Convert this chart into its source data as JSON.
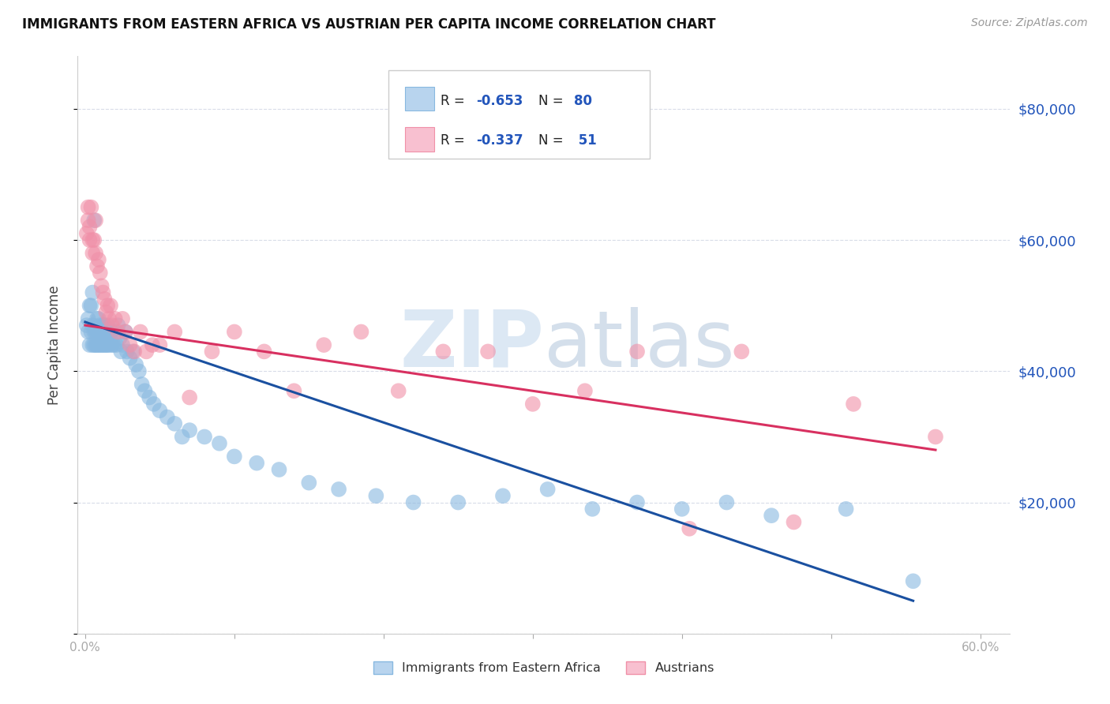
{
  "title": "IMMIGRANTS FROM EASTERN AFRICA VS AUSTRIAN PER CAPITA INCOME CORRELATION CHART",
  "source": "Source: ZipAtlas.com",
  "ylabel": "Per Capita Income",
  "scatter_color1": "#88b8e0",
  "scatter_color2": "#f090a8",
  "line_color1": "#1a50a0",
  "line_color2": "#d83060",
  "legend_color1": "#b8d4ee",
  "legend_color2": "#f8c0d0",
  "legend_edge1": "#88b8e0",
  "legend_edge2": "#f090a8",
  "watermark_zip_color": "#d8e4f0",
  "watermark_atlas_color": "#c8d8ec",
  "background_color": "#ffffff",
  "grid_color": "#d8dce8",
  "y_ticks": [
    0,
    20000,
    40000,
    60000,
    80000
  ],
  "y_tick_labels_right": [
    "",
    "$20,000",
    "$40,000",
    "$60,000",
    "$80,000"
  ],
  "blue_points_x": [
    0.001,
    0.002,
    0.002,
    0.003,
    0.003,
    0.004,
    0.004,
    0.005,
    0.005,
    0.005,
    0.006,
    0.006,
    0.006,
    0.007,
    0.007,
    0.008,
    0.008,
    0.008,
    0.009,
    0.009,
    0.01,
    0.01,
    0.01,
    0.011,
    0.011,
    0.012,
    0.012,
    0.012,
    0.013,
    0.013,
    0.014,
    0.014,
    0.015,
    0.015,
    0.016,
    0.016,
    0.017,
    0.018,
    0.018,
    0.019,
    0.02,
    0.021,
    0.022,
    0.023,
    0.024,
    0.025,
    0.027,
    0.028,
    0.03,
    0.032,
    0.034,
    0.036,
    0.038,
    0.04,
    0.043,
    0.046,
    0.05,
    0.055,
    0.06,
    0.065,
    0.07,
    0.08,
    0.09,
    0.1,
    0.115,
    0.13,
    0.15,
    0.17,
    0.195,
    0.22,
    0.25,
    0.28,
    0.31,
    0.34,
    0.37,
    0.4,
    0.43,
    0.46,
    0.51,
    0.555
  ],
  "blue_points_y": [
    47000,
    48000,
    46000,
    50000,
    44000,
    46000,
    50000,
    47000,
    52000,
    44000,
    63000,
    46000,
    44000,
    46000,
    44000,
    48000,
    46000,
    44000,
    48000,
    44000,
    47000,
    46000,
    44000,
    46000,
    44000,
    47000,
    46000,
    44000,
    47000,
    44000,
    46000,
    44000,
    47000,
    44000,
    46000,
    44000,
    46000,
    44000,
    46000,
    44000,
    46000,
    44000,
    47000,
    45000,
    43000,
    44000,
    46000,
    43000,
    42000,
    43000,
    41000,
    40000,
    38000,
    37000,
    36000,
    35000,
    34000,
    33000,
    32000,
    30000,
    31000,
    30000,
    29000,
    27000,
    26000,
    25000,
    23000,
    22000,
    21000,
    20000,
    20000,
    21000,
    22000,
    19000,
    20000,
    19000,
    20000,
    18000,
    19000,
    8000
  ],
  "pink_points_x": [
    0.001,
    0.002,
    0.002,
    0.003,
    0.003,
    0.004,
    0.005,
    0.005,
    0.006,
    0.007,
    0.007,
    0.008,
    0.009,
    0.01,
    0.011,
    0.012,
    0.013,
    0.014,
    0.015,
    0.016,
    0.017,
    0.018,
    0.02,
    0.022,
    0.025,
    0.027,
    0.03,
    0.033,
    0.037,
    0.041,
    0.045,
    0.05,
    0.06,
    0.07,
    0.085,
    0.1,
    0.12,
    0.14,
    0.16,
    0.185,
    0.21,
    0.24,
    0.27,
    0.3,
    0.335,
    0.37,
    0.405,
    0.44,
    0.475,
    0.515,
    0.57
  ],
  "pink_points_y": [
    61000,
    63000,
    65000,
    62000,
    60000,
    65000,
    60000,
    58000,
    60000,
    63000,
    58000,
    56000,
    57000,
    55000,
    53000,
    52000,
    51000,
    49000,
    50000,
    48000,
    50000,
    47000,
    48000,
    46000,
    48000,
    46000,
    44000,
    43000,
    46000,
    43000,
    44000,
    44000,
    46000,
    36000,
    43000,
    46000,
    43000,
    37000,
    44000,
    46000,
    37000,
    43000,
    43000,
    35000,
    37000,
    43000,
    16000,
    43000,
    17000,
    35000,
    30000
  ],
  "blue_line_x": [
    0.0,
    0.555
  ],
  "blue_line_y": [
    47500,
    5000
  ],
  "pink_line_x": [
    0.0,
    0.57
  ],
  "pink_line_y": [
    47000,
    28000
  ],
  "xlim": [
    -0.005,
    0.62
  ],
  "ylim": [
    0,
    88000
  ],
  "legend_R1": "-0.653",
  "legend_N1": "80",
  "legend_R2": "-0.337",
  "legend_N2": "51",
  "label1": "Immigrants from Eastern Africa",
  "label2": "Austrians"
}
